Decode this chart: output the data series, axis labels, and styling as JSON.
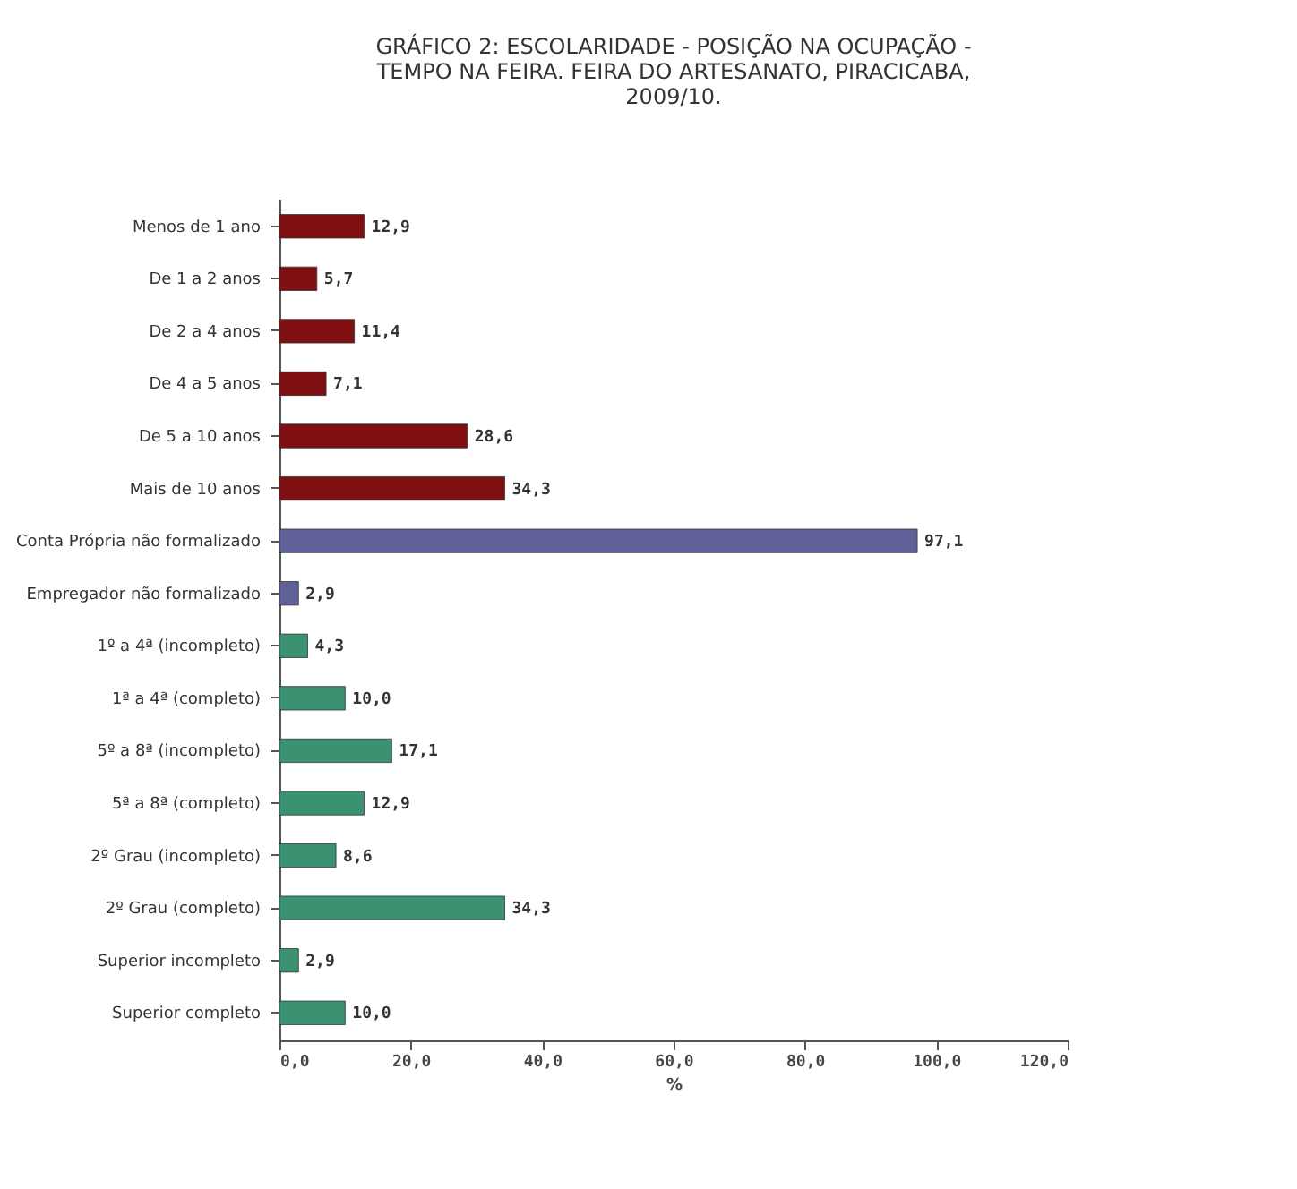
{
  "chart_data": {
    "type": "bar",
    "orientation": "horizontal",
    "title": "GRÁFICO 2: ESCOLARIDADE - POSIÇÃO NA OCUPAÇÃO - TEMPO NA FEIRA. FEIRA DO ARTESANATO, PIRACICABA, 2009/10.",
    "xlabel": "%",
    "categories": [
      "Menos de 1 ano",
      "De 1 a 2 anos",
      "De 2 a 4 anos",
      "De 4 a 5 anos",
      "De 5 a 10 anos",
      "Mais de 10 anos",
      "Conta Própria não formalizado",
      "Empregador não formalizado",
      "1º a 4ª (incompleto)",
      "1ª a 4ª (completo)",
      "5º a 8ª (incompleto)",
      "5ª a 8ª (completo)",
      "2º Grau (incompleto)",
      "2º Grau (completo)",
      "Superior incompleto",
      "Superior completo"
    ],
    "values": [
      12.9,
      5.7,
      11.4,
      7.1,
      28.6,
      34.3,
      97.1,
      2.9,
      4.3,
      10.0,
      17.1,
      12.9,
      8.6,
      34.3,
      2.9,
      10.0
    ],
    "value_labels": [
      "12,9",
      "5,7",
      "11,4",
      "7,1",
      "28,6",
      "34,3",
      "97,1",
      "2,9",
      "4,3",
      "10,0",
      "17,1",
      "12,9",
      "8,6",
      "34,3",
      "2,9",
      "10,0"
    ],
    "colors": [
      "#800f12",
      "#800f12",
      "#800f12",
      "#800f12",
      "#800f12",
      "#800f12",
      "#60609a",
      "#60609a",
      "#3a9270",
      "#3a9270",
      "#3a9270",
      "#3a9270",
      "#3a9270",
      "#3a9270",
      "#3a9270",
      "#3a9270"
    ],
    "xlim": [
      0,
      120
    ],
    "xticks": [
      {
        "value": 0,
        "label": "0,0"
      },
      {
        "value": 20,
        "label": "20,0"
      },
      {
        "value": 40,
        "label": "40,0"
      },
      {
        "value": 60,
        "label": "60,0"
      },
      {
        "value": 80,
        "label": "80,0"
      },
      {
        "value": 100,
        "label": "100,0"
      },
      {
        "value": 120,
        "label": "120,0"
      }
    ],
    "grid": false
  }
}
